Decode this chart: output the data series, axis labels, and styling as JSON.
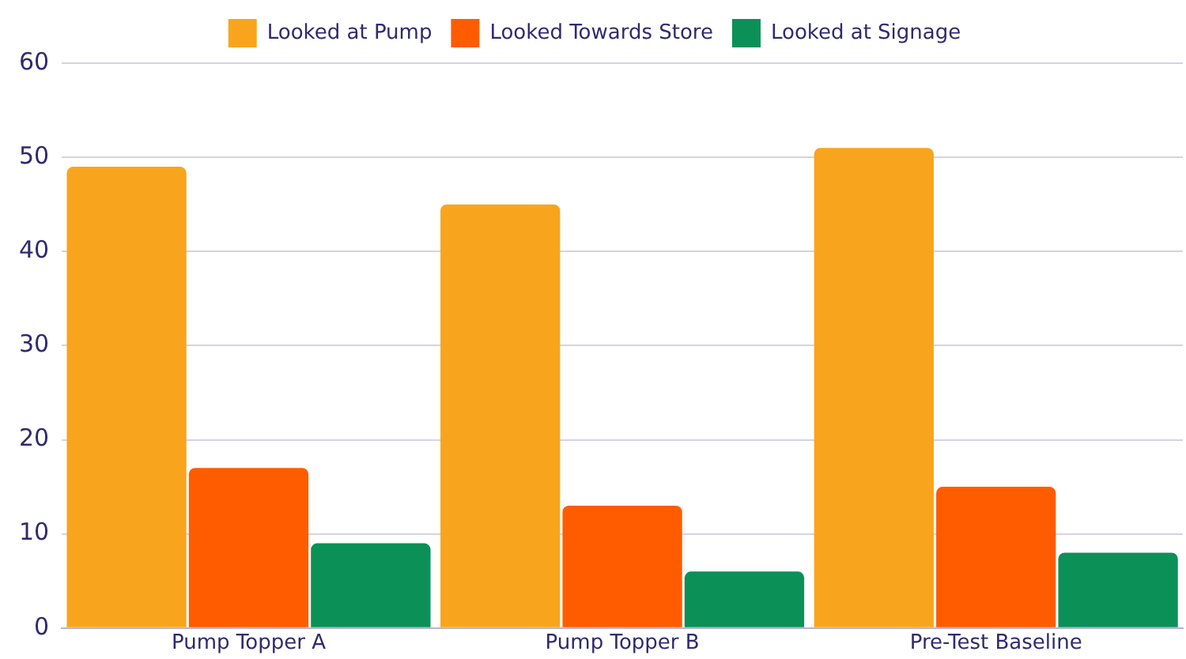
{
  "chart_data": {
    "type": "bar",
    "categories": [
      "Pump Topper A",
      "Pump Topper B",
      "Pre-Test Baseline"
    ],
    "series": [
      {
        "name": "Looked at Pump",
        "color": "#f8a51d",
        "values": [
          49,
          45,
          51
        ]
      },
      {
        "name": "Looked Towards Store",
        "color": "#ff5c00",
        "values": [
          17,
          13,
          15
        ]
      },
      {
        "name": "Looked at Signage",
        "color": "#0b9058",
        "values": [
          9,
          6,
          8
        ]
      }
    ],
    "ylim": [
      0,
      60
    ],
    "yticks": [
      0,
      10,
      20,
      30,
      40,
      50,
      60
    ],
    "grid": "y",
    "legend": "top"
  }
}
